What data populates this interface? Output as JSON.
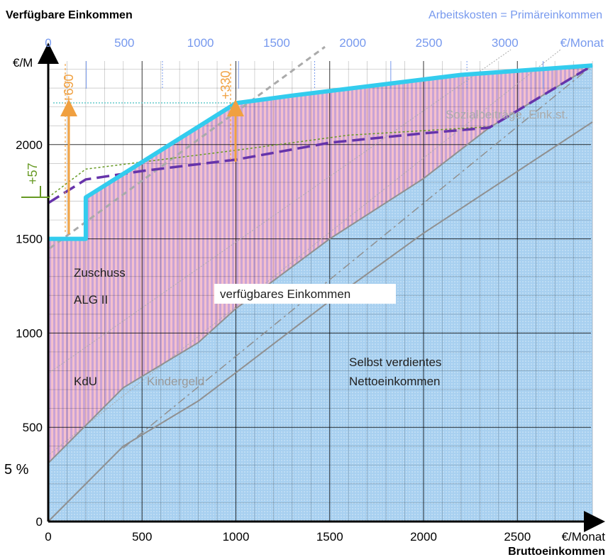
{
  "chart_data": {
    "type": "area",
    "title_left": "Verfügbare Einkommen",
    "title_right": "Arbeitskosten = Primäreinkommen",
    "xlabel": "Bruttoeinkommen",
    "x_unit": "€/Monat",
    "y_unit": "€/M",
    "top_axis_unit": "€/Monat",
    "xlim": [
      0,
      2900
    ],
    "ylim": [
      0,
      2450
    ],
    "x_ticks": [
      "0",
      "500",
      "1000",
      "1500",
      "2000",
      "2500"
    ],
    "top_ticks": [
      "0",
      "500",
      "1000",
      "1500",
      "2000",
      "2500",
      "3000"
    ],
    "y_ticks": [
      "0",
      "500",
      "1000",
      "1500",
      "2000"
    ],
    "y_extra_label": "5 %",
    "grid": true,
    "annotations": {
      "plus690": "+690",
      "plus330": "+330",
      "plus57": "+57",
      "zuschuss": "Zuschuss",
      "alg2": "ALG II",
      "kdu": "KdU",
      "kindergeld": "Kindergeld",
      "verfuegbares": "verfügbares Einkommen",
      "selbst1": "Selbst verdientes",
      "selbst2": "Nettoeinkommen",
      "sozial": "Sozialbeiträge, Eink.st."
    },
    "series": [
      {
        "role": "verfuegbar",
        "color": "#33ccee",
        "x": [
          0,
          200,
          200,
          1000,
          1300,
          2200,
          2900
        ],
        "y": [
          1500,
          1500,
          1720,
          2220,
          2260,
          2370,
          2420
        ]
      },
      {
        "role": "dashed",
        "color": "#6633aa",
        "x": [
          0,
          200,
          500,
          1000,
          1500,
          2000,
          2350,
          2900
        ],
        "y": [
          1690,
          1815,
          1860,
          1920,
          2010,
          2060,
          2090,
          2420
        ]
      },
      {
        "role": "dotted",
        "color": "#669922",
        "x": [
          0,
          200,
          1000,
          1600,
          2350
        ],
        "y": [
          1720,
          1870,
          1970,
          2050,
          2095
        ]
      },
      {
        "role": "netto_plus_kindergeld",
        "color": "#909090",
        "x": [
          0,
          400,
          800,
          1000,
          1500,
          2000,
          2350,
          2900
        ],
        "y": [
          310,
          710,
          950,
          1130,
          1500,
          1820,
          2090,
          2420
        ]
      },
      {
        "role": "netto",
        "color": "#909090",
        "x": [
          0,
          400,
          800,
          1000,
          1500,
          2000,
          2900
        ],
        "y": [
          0,
          400,
          640,
          790,
          1170,
          1530,
          2120
        ]
      },
      {
        "role": "kosten",
        "color": "#909090",
        "x": [
          400,
          2900
        ],
        "y": [
          390,
          2420
        ]
      }
    ]
  }
}
